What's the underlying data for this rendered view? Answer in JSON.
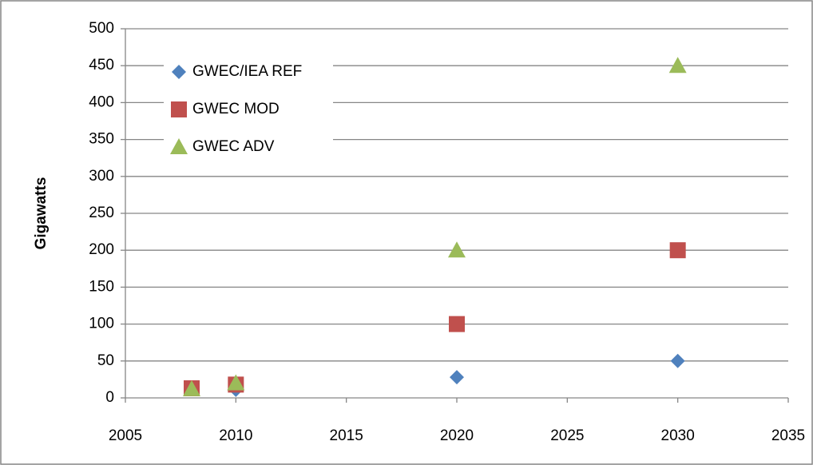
{
  "chart_data": {
    "type": "scatter",
    "ylabel": "Gigawatts",
    "x": [
      2008,
      2010,
      2020,
      2030
    ],
    "series": [
      {
        "name": "GWEC/IEA REF",
        "color": "#4f81bd",
        "marker": "diamond",
        "values": [
          12,
          11,
          28,
          50
        ]
      },
      {
        "name": "GWEC MOD",
        "color": "#c0504d",
        "marker": "square",
        "values": [
          13,
          18,
          100,
          200
        ]
      },
      {
        "name": "GWEC ADV",
        "color": "#9bbb59",
        "marker": "triangle",
        "values": [
          12,
          20,
          200,
          450
        ]
      }
    ],
    "xlim": [
      2005,
      2035
    ],
    "xticks": [
      2005,
      2010,
      2015,
      2020,
      2025,
      2030,
      2035
    ],
    "ylim": [
      0,
      500
    ],
    "yticks": [
      0,
      50,
      100,
      150,
      200,
      250,
      300,
      350,
      400,
      450,
      500
    ],
    "grid": true,
    "legend": "upper left"
  }
}
